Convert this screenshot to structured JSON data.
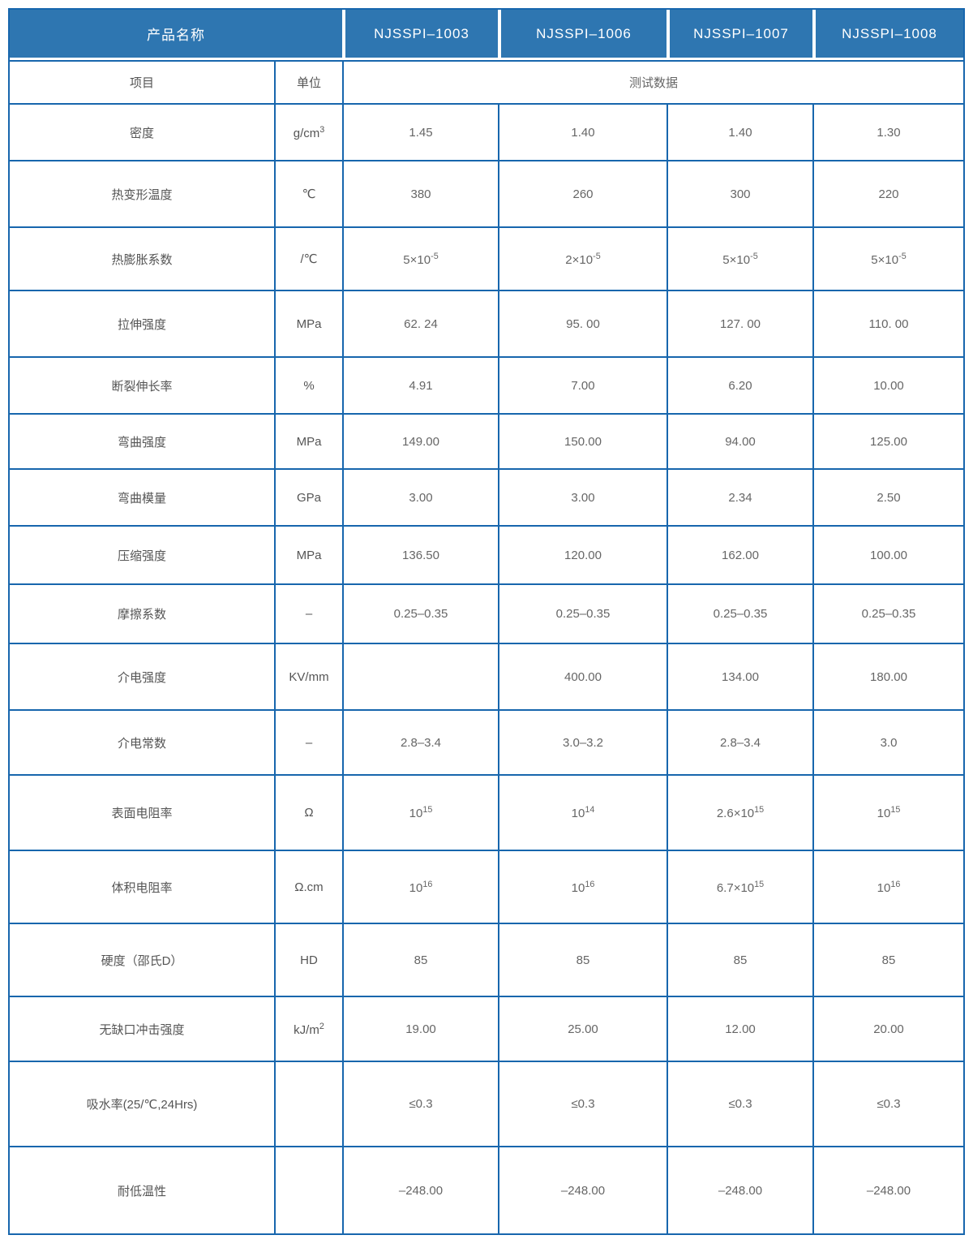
{
  "colors": {
    "header_bg": "#2e76b1",
    "border": "#1766ad",
    "label_text": "#555555",
    "value_text": "#666666"
  },
  "table": {
    "header": {
      "product_label": "产品名称",
      "products": [
        "NJSSPI–1003",
        "NJSSPI–1006",
        "NJSSPI–1007",
        "NJSSPI–1008"
      ]
    },
    "subheader": {
      "item": "项目",
      "unit": "单位",
      "test_data": "测试数据"
    },
    "rows": [
      {
        "item": "密度",
        "unit": "g/cm^{3}",
        "values": [
          "1.45",
          "1.40",
          "1.40",
          "1.30"
        ]
      },
      {
        "item": "热变形温度",
        "unit": "℃",
        "values": [
          "380",
          "260",
          "300",
          "220"
        ]
      },
      {
        "item": "热膨胀系数",
        "unit": "/℃",
        "values": [
          "5×10^{-5}",
          "2×10^{-5}",
          "5×10^{-5}",
          "5×10^{-5}"
        ]
      },
      {
        "item": "拉伸强度",
        "unit": "MPa",
        "values": [
          "62. 24",
          "95. 00",
          "127. 00",
          "110. 00"
        ]
      },
      {
        "item": "断裂伸长率",
        "unit": "%",
        "values": [
          "4.91",
          "7.00",
          "6.20",
          "10.00"
        ]
      },
      {
        "item": "弯曲强度",
        "unit": "MPa",
        "values": [
          "149.00",
          "150.00",
          "94.00",
          "125.00"
        ]
      },
      {
        "item": "弯曲模量",
        "unit": "GPa",
        "values": [
          "3.00",
          "3.00",
          "2.34",
          "2.50"
        ]
      },
      {
        "item": "压缩强度",
        "unit": "MPa",
        "values": [
          "136.50",
          "120.00",
          "162.00",
          "100.00"
        ]
      },
      {
        "item": "摩擦系数",
        "unit": "–",
        "values": [
          "0.25–0.35",
          "0.25–0.35",
          "0.25–0.35",
          "0.25–0.35"
        ]
      },
      {
        "item": "介电强度",
        "unit": "KV/mm",
        "values": [
          "",
          "400.00",
          "134.00",
          "180.00"
        ]
      },
      {
        "item": "介电常数",
        "unit": "–",
        "values": [
          "2.8–3.4",
          "3.0–3.2",
          "2.8–3.4",
          "3.0"
        ]
      },
      {
        "item": "表面电阻率",
        "unit": "Ω",
        "values": [
          "10^{15}",
          "10^{14}",
          "2.6×10^{15}",
          "10^{15}"
        ]
      },
      {
        "item": "体积电阻率",
        "unit": "Ω.cm",
        "values": [
          "10^{16}",
          "10^{16}",
          "6.7×10^{15}",
          "10^{16}"
        ]
      },
      {
        "item": "硬度（邵氏D）",
        "unit": "HD",
        "values": [
          "85",
          "85",
          "85",
          "85"
        ]
      },
      {
        "item": "无缺口冲击强度",
        "unit": "kJ/m^{2}",
        "values": [
          "19.00",
          "25.00",
          "12.00",
          "20.00"
        ]
      },
      {
        "item": "吸水率(25/℃,24Hrs)",
        "unit": "",
        "values": [
          "≤0.3",
          "≤0.3",
          "≤0.3",
          "≤0.3"
        ]
      },
      {
        "item": "耐低温性",
        "unit": "",
        "values": [
          "–248.00",
          "–248.00",
          "–248.00",
          "–248.00"
        ]
      }
    ]
  }
}
